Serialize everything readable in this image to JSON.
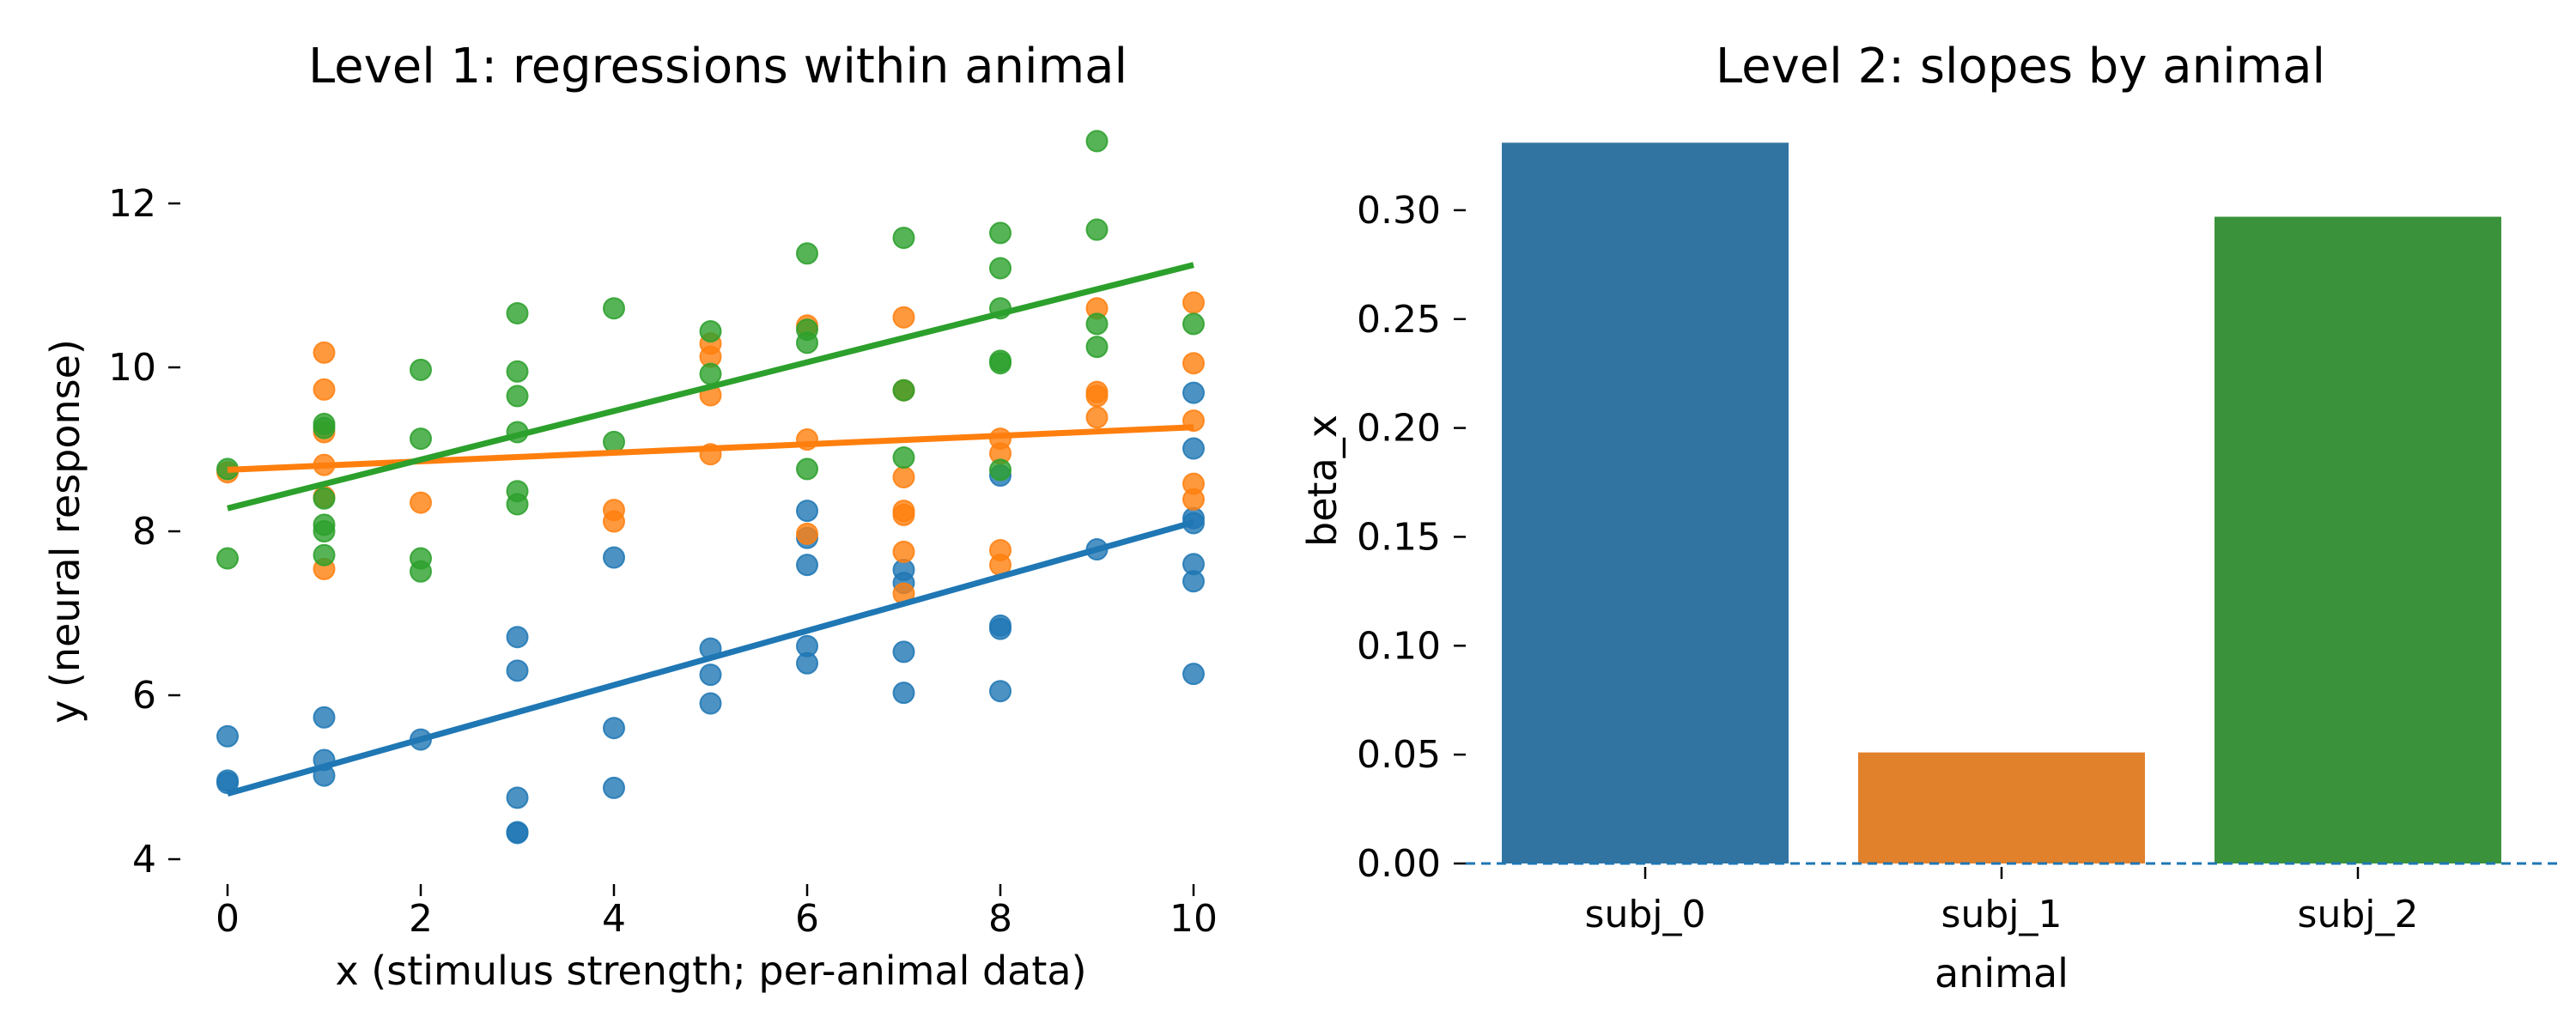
{
  "chart_data": [
    {
      "type": "scatter",
      "title": "Level 1: regressions within animal",
      "xlabel": "x (stimulus strength; per-animal data)",
      "ylabel": "y (neural response)",
      "xlim": [
        0,
        10
      ],
      "ylim": [
        4,
        12
      ],
      "xticks": [
        "0",
        "2",
        "4",
        "6",
        "8",
        "10"
      ],
      "yticks": [
        "4",
        "6",
        "8",
        "10",
        "12"
      ],
      "grid": false,
      "legend": "none",
      "series": [
        {
          "name": "subj_0",
          "color": "#1f77b4",
          "points": [
            [
              0,
              5.5
            ],
            [
              0,
              4.96
            ],
            [
              0,
              4.93
            ],
            [
              1,
              5.73
            ],
            [
              1,
              5.21
            ],
            [
              1,
              5.02
            ],
            [
              2,
              5.46
            ],
            [
              3,
              6.71
            ],
            [
              3,
              6.3
            ],
            [
              3,
              4.75
            ],
            [
              3,
              4.33
            ],
            [
              3,
              4.32
            ],
            [
              4,
              7.68
            ],
            [
              4,
              5.6
            ],
            [
              4,
              4.87
            ],
            [
              5,
              6.57
            ],
            [
              5,
              6.25
            ],
            [
              5,
              5.9
            ],
            [
              6,
              8.25
            ],
            [
              6,
              7.92
            ],
            [
              6,
              7.59
            ],
            [
              6,
              6.6
            ],
            [
              6,
              6.39
            ],
            [
              7,
              7.53
            ],
            [
              7,
              7.37
            ],
            [
              7,
              6.53
            ],
            [
              7,
              6.03
            ],
            [
              8,
              8.68
            ],
            [
              8,
              6.85
            ],
            [
              8,
              6.81
            ],
            [
              8,
              6.05
            ],
            [
              9,
              7.78
            ],
            [
              10,
              9.69
            ],
            [
              10,
              9.01
            ],
            [
              10,
              8.16
            ],
            [
              10,
              8.1
            ],
            [
              10,
              7.6
            ],
            [
              10,
              7.39
            ],
            [
              10,
              6.26
            ]
          ],
          "fit": {
            "y_at_x0": 4.8,
            "y_at_x10": 8.11
          }
        },
        {
          "name": "subj_1",
          "color": "#ff7f0e",
          "points": [
            [
              0,
              8.72
            ],
            [
              1,
              10.18
            ],
            [
              1,
              9.73
            ],
            [
              1,
              9.21
            ],
            [
              1,
              8.81
            ],
            [
              1,
              8.42
            ],
            [
              1,
              7.54
            ],
            [
              2,
              8.35
            ],
            [
              4,
              8.26
            ],
            [
              4,
              8.12
            ],
            [
              5,
              10.29
            ],
            [
              5,
              10.13
            ],
            [
              5,
              9.66
            ],
            [
              5,
              8.94
            ],
            [
              6,
              10.51
            ],
            [
              6,
              9.12
            ],
            [
              6,
              7.97
            ],
            [
              7,
              10.61
            ],
            [
              7,
              9.72
            ],
            [
              7,
              8.66
            ],
            [
              7,
              8.25
            ],
            [
              7,
              8.2
            ],
            [
              7,
              7.75
            ],
            [
              7,
              7.24
            ],
            [
              8,
              9.13
            ],
            [
              8,
              8.95
            ],
            [
              8,
              7.77
            ],
            [
              8,
              7.59
            ],
            [
              9,
              10.72
            ],
            [
              9,
              9.7
            ],
            [
              9,
              9.65
            ],
            [
              9,
              9.39
            ],
            [
              10,
              10.79
            ],
            [
              10,
              10.05
            ],
            [
              10,
              9.35
            ],
            [
              10,
              8.58
            ],
            [
              10,
              8.39
            ]
          ],
          "fit": {
            "y_at_x0": 8.75,
            "y_at_x10": 9.27
          }
        },
        {
          "name": "subj_2",
          "color": "#2ca02c",
          "points": [
            [
              0,
              8.76
            ],
            [
              0,
              7.67
            ],
            [
              1,
              9.31
            ],
            [
              1,
              9.26
            ],
            [
              1,
              8.4
            ],
            [
              1,
              8.08
            ],
            [
              1,
              8.0
            ],
            [
              1,
              7.71
            ],
            [
              2,
              9.97
            ],
            [
              2,
              9.13
            ],
            [
              2,
              7.67
            ],
            [
              2,
              7.51
            ],
            [
              3,
              10.66
            ],
            [
              3,
              9.95
            ],
            [
              3,
              9.65
            ],
            [
              3,
              9.21
            ],
            [
              3,
              8.49
            ],
            [
              3,
              8.33
            ],
            [
              4,
              10.72
            ],
            [
              4,
              9.09
            ],
            [
              5,
              10.44
            ],
            [
              5,
              9.92
            ],
            [
              6,
              11.39
            ],
            [
              6,
              10.46
            ],
            [
              6,
              10.3
            ],
            [
              6,
              8.76
            ],
            [
              7,
              11.58
            ],
            [
              7,
              9.72
            ],
            [
              7,
              8.9
            ],
            [
              8,
              11.64
            ],
            [
              8,
              11.21
            ],
            [
              8,
              10.72
            ],
            [
              8,
              10.08
            ],
            [
              8,
              10.05
            ],
            [
              8,
              8.75
            ],
            [
              9,
              12.76
            ],
            [
              9,
              11.68
            ],
            [
              9,
              10.53
            ],
            [
              9,
              10.25
            ],
            [
              10,
              10.53
            ]
          ],
          "fit": {
            "y_at_x0": 8.28,
            "y_at_x10": 11.25
          }
        }
      ]
    },
    {
      "type": "bar",
      "title": "Level 2: slopes by animal",
      "xlabel": "animal",
      "ylabel": "beta_x",
      "categories": [
        "subj_0",
        "subj_1",
        "subj_2"
      ],
      "values": [
        0.331,
        0.051,
        0.297
      ],
      "colors": [
        "#3274a1",
        "#e1812c",
        "#3a923a"
      ],
      "ylim": [
        0,
        0.331
      ],
      "yticks": [
        "0.00",
        "0.05",
        "0.10",
        "0.15",
        "0.20",
        "0.25",
        "0.30"
      ],
      "reference_line": {
        "y": 0,
        "style": "dashed",
        "color": "#1f77b4"
      },
      "grid": false,
      "legend": "none"
    }
  ]
}
